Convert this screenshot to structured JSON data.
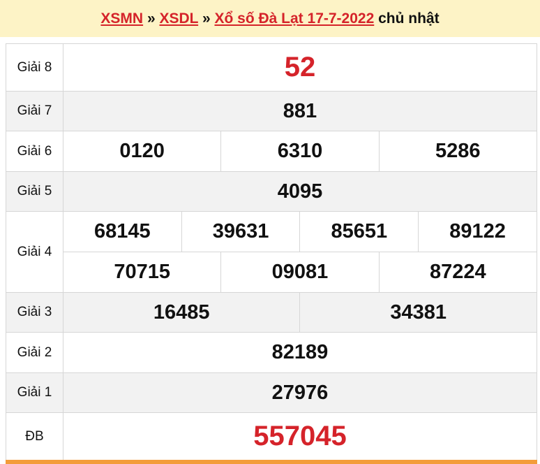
{
  "header": {
    "breadcrumb": [
      "XSMN",
      "XSDL",
      "Xổ số Đà Lạt 17-7-2022"
    ],
    "separator": "»",
    "day": "chủ nhật"
  },
  "prizes": [
    {
      "label": "Giải 8",
      "numbers": [
        "52"
      ]
    },
    {
      "label": "Giải 7",
      "numbers": [
        "881"
      ]
    },
    {
      "label": "Giải 6",
      "numbers": [
        "0120",
        "6310",
        "5286"
      ]
    },
    {
      "label": "Giải 5",
      "numbers": [
        "4095"
      ]
    },
    {
      "label": "Giải 4",
      "numbers": [
        "68145",
        "39631",
        "85651",
        "89122",
        "70715",
        "09081",
        "87224"
      ]
    },
    {
      "label": "Giải 3",
      "numbers": [
        "16485",
        "34381"
      ]
    },
    {
      "label": "Giải 2",
      "numbers": [
        "82189"
      ]
    },
    {
      "label": "Giải 1",
      "numbers": [
        "27976"
      ]
    },
    {
      "label": "ĐB",
      "numbers": [
        "557045"
      ]
    }
  ],
  "colors": {
    "accent": "#d5232a",
    "header_bg": "#fdf3c6",
    "footer_bar": "#f39c3a"
  }
}
